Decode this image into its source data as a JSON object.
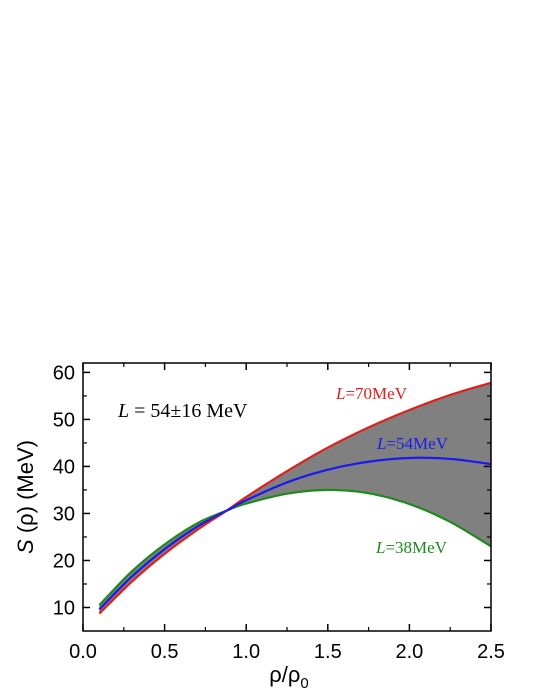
{
  "chart_data": {
    "type": "line",
    "xlabel": {
      "main": "ρ/ρ",
      "sub": "0"
    },
    "ylabel": {
      "italic": "S",
      "rest": " (ρ) (MeV)"
    },
    "xlim": [
      0.0,
      2.5
    ],
    "ylim": [
      5,
      62
    ],
    "xticks": [
      "0.0",
      "0.5",
      "1.0",
      "1.5",
      "2.0",
      "2.5"
    ],
    "xtick_values": [
      0.0,
      0.5,
      1.0,
      1.5,
      2.0,
      2.5
    ],
    "yticks": [
      "10",
      "20",
      "30",
      "40",
      "50",
      "60"
    ],
    "ytick_values": [
      10,
      20,
      30,
      40,
      50,
      60
    ],
    "grid": false,
    "annotation": {
      "italic": "L",
      "rest": " = 54±16 MeV"
    },
    "band_fill": "#808080",
    "series": [
      {
        "label_italic": "L",
        "label_rest": "=70MeV",
        "color": "#e0201c",
        "x": [
          0.1,
          0.3,
          0.5,
          0.7,
          0.88,
          1.0,
          1.25,
          1.5,
          1.75,
          2.0,
          2.25,
          2.5
        ],
        "values": [
          8.7,
          15.5,
          21.4,
          26.5,
          30.6,
          33.5,
          39.0,
          44.0,
          48.3,
          52.0,
          55.2,
          57.8
        ]
      },
      {
        "label_italic": "L",
        "label_rest": "=54MeV",
        "color": "#1a1aee",
        "x": [
          0.1,
          0.3,
          0.5,
          0.7,
          0.88,
          1.0,
          1.25,
          1.5,
          1.75,
          2.0,
          2.25,
          2.5
        ],
        "values": [
          9.6,
          16.6,
          22.4,
          27.2,
          30.6,
          32.8,
          36.6,
          39.3,
          41.0,
          41.8,
          41.6,
          40.5
        ]
      },
      {
        "label_italic": "L",
        "label_rest": "=38MeV",
        "color": "#1e8a1e",
        "x": [
          0.1,
          0.3,
          0.5,
          0.7,
          0.88,
          1.0,
          1.25,
          1.5,
          1.75,
          2.0,
          2.25,
          2.5
        ],
        "values": [
          10.5,
          17.7,
          23.4,
          27.9,
          30.6,
          32.1,
          34.2,
          35.0,
          34.3,
          32.0,
          28.2,
          23.0
        ]
      }
    ]
  }
}
